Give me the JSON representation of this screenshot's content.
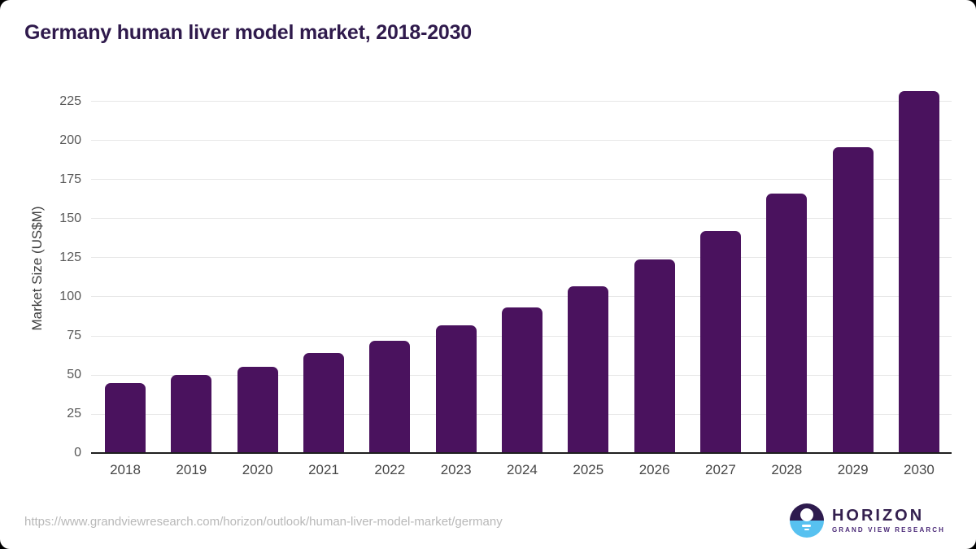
{
  "chart_data": {
    "type": "bar",
    "title": "Germany human liver model market, 2018-2030",
    "categories": [
      "2018",
      "2019",
      "2020",
      "2021",
      "2022",
      "2023",
      "2024",
      "2025",
      "2026",
      "2027",
      "2028",
      "2029",
      "2030"
    ],
    "values": [
      45,
      50,
      55,
      64,
      72,
      82,
      93,
      107,
      124,
      142,
      166,
      196,
      232
    ],
    "xlabel": "",
    "ylabel": "Market Size (US$M)",
    "yticks": [
      0,
      25,
      50,
      75,
      100,
      125,
      150,
      175,
      200,
      225
    ],
    "ylim": [
      0,
      238
    ],
    "grid": "horizontal",
    "legend": "none",
    "bar_color": "#4a125e",
    "gridline_color": "#e7e7e7",
    "axis_line_color": "#1f1f1f",
    "title_color": "#2f1a4c"
  },
  "footer": {
    "source_url": "https://www.grandviewresearch.com/horizon/outlook/human-liver-model-market/germany",
    "logo": {
      "brand": "HORIZON",
      "sub_brand": "GRAND VIEW RESEARCH",
      "icon": "horizon-sunrise-icon",
      "brand_color": "#34204f",
      "sub_brand_color": "#4b2a78"
    }
  }
}
